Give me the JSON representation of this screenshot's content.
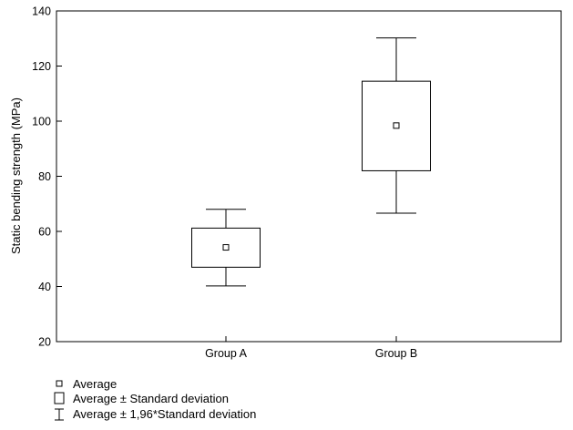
{
  "chart_data": {
    "type": "box",
    "ylabel": "Static bending strength (MPa)",
    "xlabel": "",
    "ylim": [
      20,
      140
    ],
    "yticks": [
      20,
      40,
      60,
      80,
      100,
      120,
      140
    ],
    "categories": [
      "Group A",
      "Group B"
    ],
    "groups": [
      {
        "name": "Group A",
        "mean": 54.2,
        "sd_low": 47.0,
        "sd_high": 61.2,
        "ci_low": 40.2,
        "ci_high": 68.0
      },
      {
        "name": "Group B",
        "mean": 98.4,
        "sd_low": 82.0,
        "sd_high": 114.5,
        "ci_low": 66.6,
        "ci_high": 130.2
      }
    ],
    "grid": false,
    "legend_position": "bottom-left",
    "legend": [
      {
        "symbol": "point",
        "label": "Average"
      },
      {
        "symbol": "box",
        "label": "Average ± Standard deviation"
      },
      {
        "symbol": "whisker",
        "label": "Average ± 1,96*Standard deviation"
      }
    ]
  }
}
